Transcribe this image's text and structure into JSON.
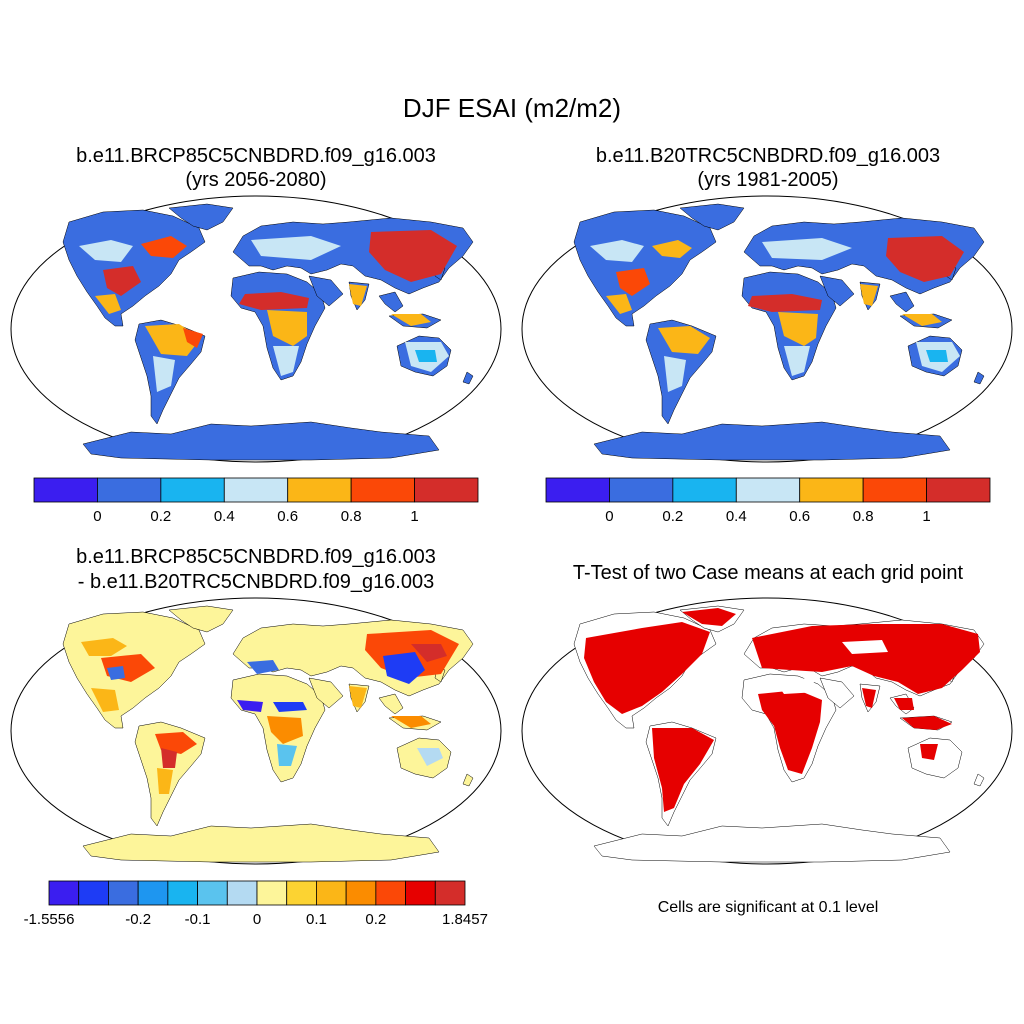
{
  "title": "DJF ESAI (m2/m2)",
  "panels": [
    {
      "id": "case",
      "title_line1": "b.e11.BRCP85C5CNBDRD.f09_g16.003",
      "title_line2": "(yrs 2056-2080)",
      "colorbar": {
        "colors": [
          "#3b1ef0",
          "#3a6de0",
          "#19b4f0",
          "#c8e6f5",
          "#fbb617",
          "#fb4807",
          "#d42d2a"
        ],
        "tick_labels": [
          "0",
          "0.2",
          "0.4",
          "0.6",
          "0.8",
          "1"
        ]
      }
    },
    {
      "id": "control",
      "title_line1": "b.e11.B20TRC5CNBDRD.f09_g16.003",
      "title_line2": "(yrs 1981-2005)",
      "colorbar": {
        "colors": [
          "#3b1ef0",
          "#3a6de0",
          "#19b4f0",
          "#c8e6f5",
          "#fbb617",
          "#fb4807",
          "#d42d2a"
        ],
        "tick_labels": [
          "0",
          "0.2",
          "0.4",
          "0.6",
          "0.8",
          "1"
        ]
      }
    },
    {
      "id": "difference",
      "title_line1": "b.e11.BRCP85C5CNBDRD.f09_g16.003",
      "title_line2": "- b.e11.B20TRC5CNBDRD.f09_g16.003",
      "colorbar": {
        "colors": [
          "#3b1ef0",
          "#1e3cf5",
          "#3a6de0",
          "#1e96f0",
          "#19b4f0",
          "#5ac3ee",
          "#b4daf2",
          "#fdf59a",
          "#fcd332",
          "#fbb617",
          "#fb8c00",
          "#fb4807",
          "#e60000",
          "#d42d2a"
        ],
        "tick_labels": [
          "-1.5556",
          "-0.2",
          "-0.1",
          "0",
          "0.1",
          "0.2",
          "1.8457"
        ]
      }
    },
    {
      "id": "ttest",
      "title_line1": "T-Test of two Case means at each grid point",
      "note": "Cells are significant at 0.1 level",
      "signif_color": "#e60000"
    }
  ]
}
